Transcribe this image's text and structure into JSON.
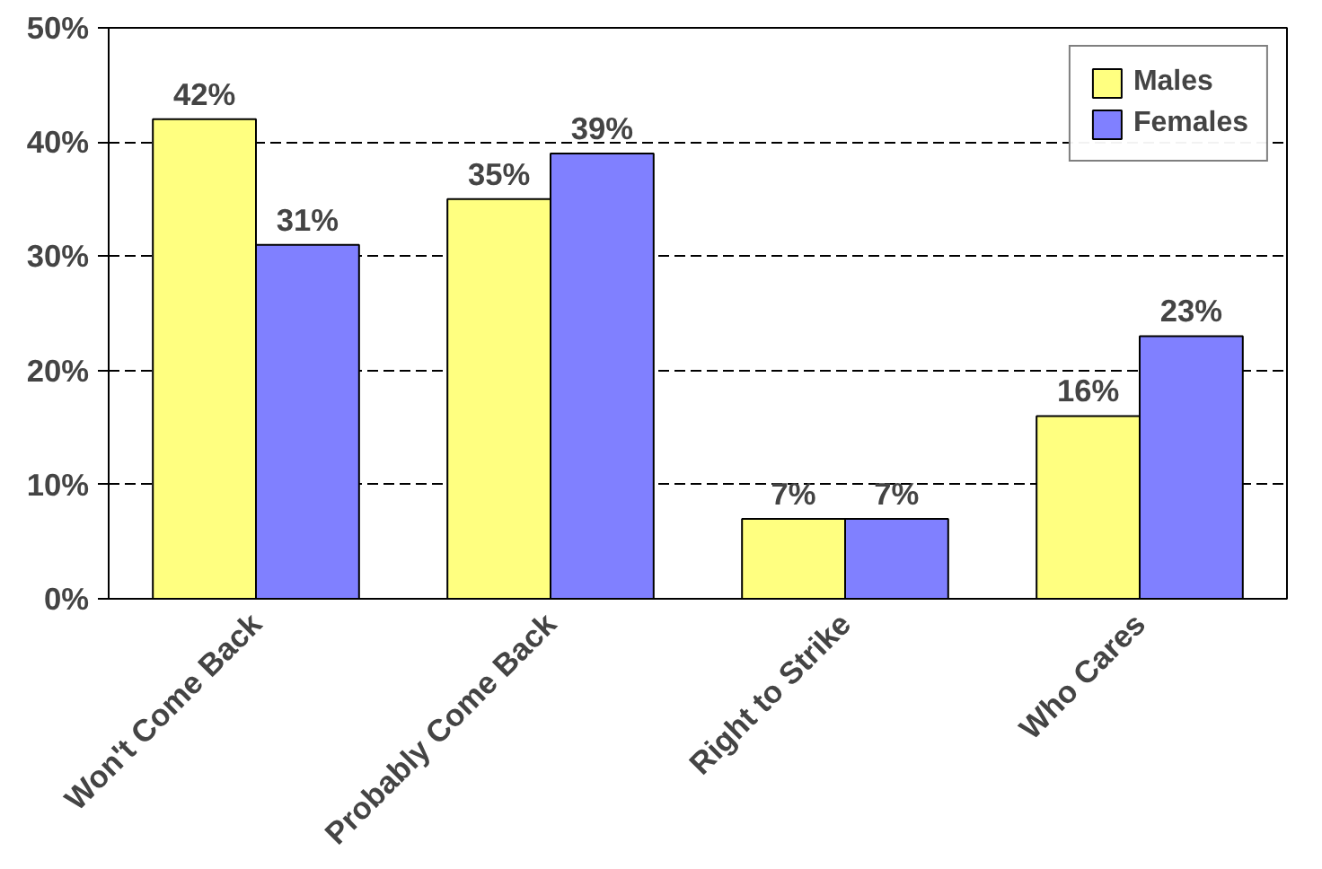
{
  "chart_data": {
    "type": "bar",
    "categories": [
      "Won't Come Back",
      "Probably Come Back",
      "Right to Strike",
      "Who Cares"
    ],
    "series": [
      {
        "name": "Males",
        "color": "#ffff80",
        "values": [
          42,
          35,
          7,
          16
        ],
        "value_labels": [
          "42%",
          "35%",
          "7%",
          "16%"
        ]
      },
      {
        "name": "Females",
        "color": "#8080ff",
        "values": [
          31,
          39,
          7,
          23
        ],
        "value_labels": [
          "31%",
          "39%",
          "7%",
          "23%"
        ]
      }
    ],
    "ylim": [
      0,
      50
    ],
    "yticks": [
      {
        "value": 0,
        "label": "0%"
      },
      {
        "value": 10,
        "label": "10%"
      },
      {
        "value": 20,
        "label": "20%"
      },
      {
        "value": 30,
        "label": "30%"
      },
      {
        "value": 40,
        "label": "40%"
      },
      {
        "value": 50,
        "label": "50%"
      }
    ],
    "grid": "y",
    "legend": "top right"
  }
}
